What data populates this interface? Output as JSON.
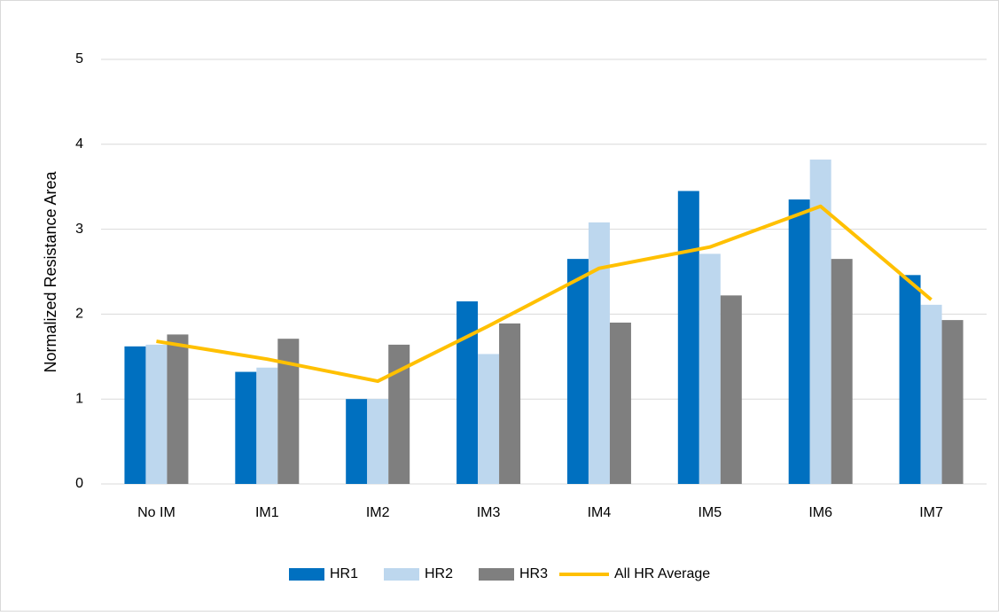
{
  "chart_data": {
    "type": "bar_line",
    "y_label": "Normalized Resistance Area",
    "categories": [
      "No IM",
      "IM1",
      "IM2",
      "IM3",
      "IM4",
      "IM5",
      "IM6",
      "IM7"
    ],
    "series": [
      {
        "name": "HR1",
        "type": "bar",
        "color": "#0070c0",
        "values": [
          1.62,
          1.32,
          1.0,
          2.15,
          2.65,
          3.45,
          3.35,
          2.46
        ]
      },
      {
        "name": "HR2",
        "type": "bar",
        "color": "#bdd7ee",
        "values": [
          1.64,
          1.37,
          1.0,
          1.53,
          3.08,
          2.71,
          3.82,
          2.11
        ]
      },
      {
        "name": "HR3",
        "type": "bar",
        "color": "#7f7f7f",
        "values": [
          1.76,
          1.71,
          1.64,
          1.89,
          1.9,
          2.22,
          2.65,
          1.93
        ]
      },
      {
        "name": "All HR Average",
        "type": "line",
        "color": "#ffc000",
        "values": [
          1.68,
          1.47,
          1.21,
          1.86,
          2.54,
          2.79,
          3.27,
          2.17
        ]
      }
    ],
    "ylim": [
      0,
      5
    ],
    "yticks": [
      0,
      1,
      2,
      3,
      4,
      5
    ],
    "grid": true,
    "legend": "bottom"
  }
}
